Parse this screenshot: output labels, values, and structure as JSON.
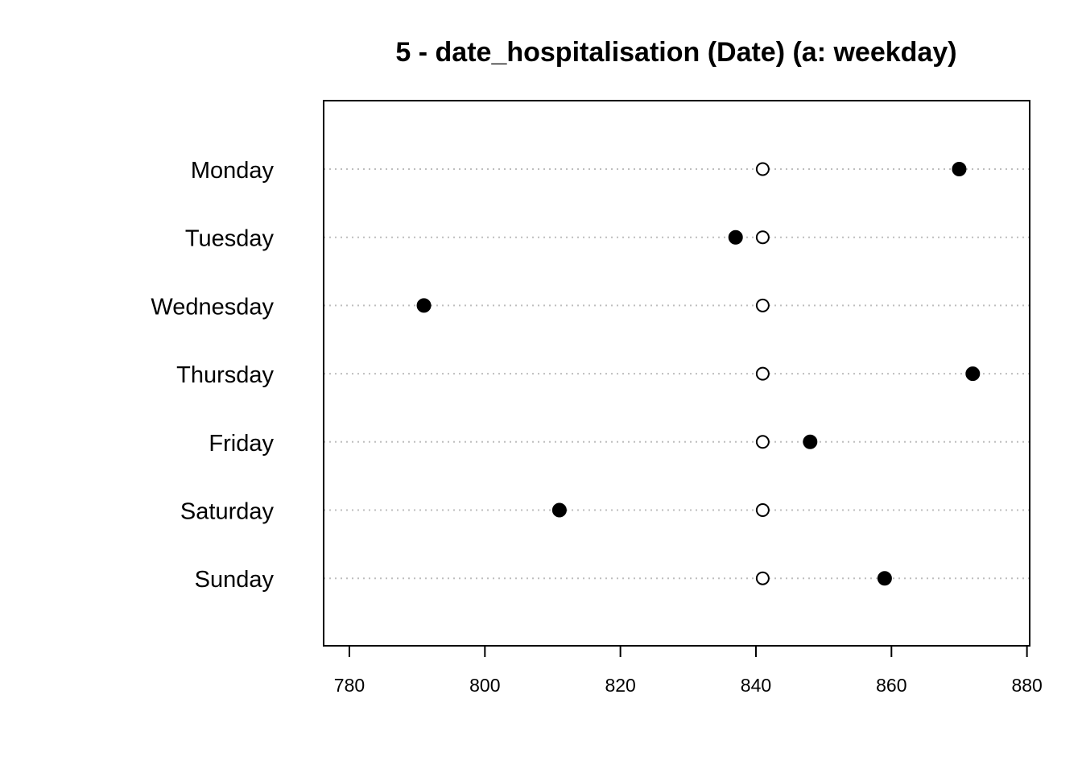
{
  "chart_data": {
    "type": "scatter",
    "subtype": "dotchart",
    "title": "5 - date_hospitalisation (Date) (a: weekday)",
    "xlabel": "",
    "ylabel": "",
    "categories": [
      "Monday",
      "Tuesday",
      "Wednesday",
      "Thursday",
      "Friday",
      "Saturday",
      "Sunday"
    ],
    "series": [
      {
        "values": [
          870,
          837,
          791,
          872,
          848,
          811,
          859
        ],
        "marker": "filled-circle",
        "color": "#000000"
      },
      {
        "values": [
          841,
          841,
          841,
          841,
          841,
          841,
          841
        ],
        "marker": "open-circle",
        "color": "#000000"
      }
    ],
    "xlim": [
      776.2,
      880.4
    ],
    "xticks": [
      780,
      800,
      820,
      840,
      860,
      880
    ],
    "xtick_labels": [
      "780",
      "800",
      "820",
      "840",
      "860",
      "880"
    ],
    "grid": "dotted horizontal guide lines per category",
    "grid_color": "#bebebe",
    "legend": "none"
  }
}
